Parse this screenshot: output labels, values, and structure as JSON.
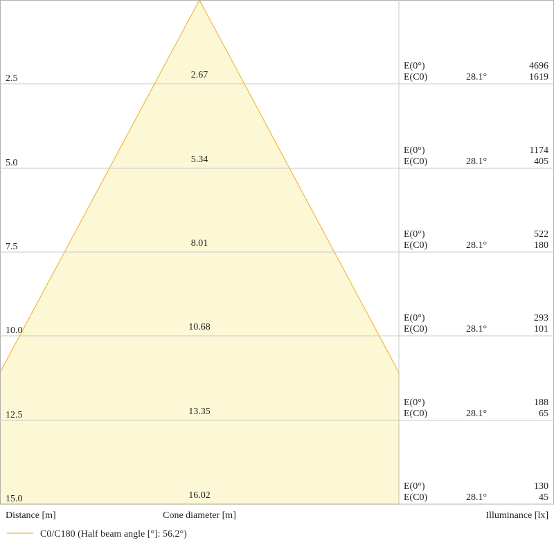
{
  "rows": [
    {
      "distance": "2.5",
      "diameter": "2.67",
      "e0_label": "E(0°)",
      "e0": "4696",
      "ec0_label": "E(C0)",
      "angle": "28.1°",
      "ec0": "1619"
    },
    {
      "distance": "5.0",
      "diameter": "5.34",
      "e0_label": "E(0°)",
      "e0": "1174",
      "ec0_label": "E(C0)",
      "angle": "28.1°",
      "ec0": "405"
    },
    {
      "distance": "7.5",
      "diameter": "8.01",
      "e0_label": "E(0°)",
      "e0": "522",
      "ec0_label": "E(C0)",
      "angle": "28.1°",
      "ec0": "180"
    },
    {
      "distance": "10.0",
      "diameter": "10.68",
      "e0_label": "E(0°)",
      "e0": "293",
      "ec0_label": "E(C0)",
      "angle": "28.1°",
      "ec0": "101"
    },
    {
      "distance": "12.5",
      "diameter": "13.35",
      "e0_label": "E(0°)",
      "e0": "188",
      "ec0_label": "E(C0)",
      "angle": "28.1°",
      "ec0": "65"
    },
    {
      "distance": "15.0",
      "diameter": "16.02",
      "e0_label": "E(0°)",
      "e0": "130",
      "ec0_label": "E(C0)",
      "angle": "28.1°",
      "ec0": "45"
    }
  ],
  "footer": {
    "distance": "Distance [m]",
    "diameter": "Cone diameter [m]",
    "illuminance": "Illuminance [lx]"
  },
  "legend": "C0/C180 (Half beam angle [°]: 56.2°)"
}
